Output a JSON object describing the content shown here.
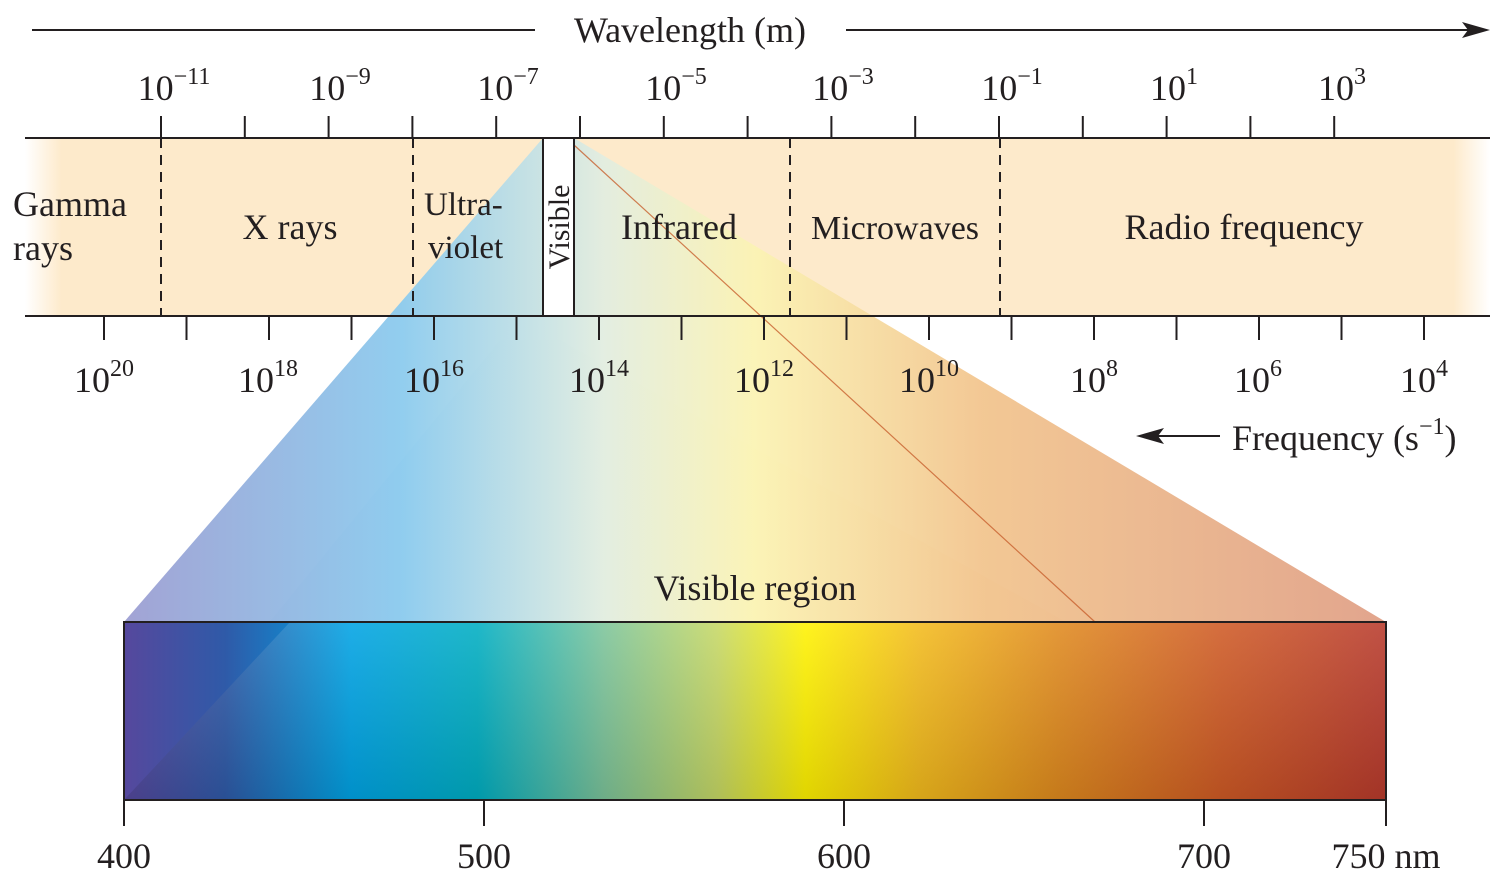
{
  "wavelength_axis": {
    "title": "Wavelength (m)",
    "ticks": [
      {
        "base": "10",
        "exp": "−11"
      },
      {
        "base": "10",
        "exp": "−9"
      },
      {
        "base": "10",
        "exp": "−7"
      },
      {
        "base": "10",
        "exp": "−5"
      },
      {
        "base": "10",
        "exp": "−3"
      },
      {
        "base": "10",
        "exp": "−1"
      },
      {
        "base": "10",
        "exp": "1"
      },
      {
        "base": "10",
        "exp": "3"
      }
    ]
  },
  "frequency_axis": {
    "title_base": "Frequency (s",
    "title_exp": "−1",
    "title_close": ")",
    "ticks": [
      {
        "base": "10",
        "exp": "20"
      },
      {
        "base": "10",
        "exp": "18"
      },
      {
        "base": "10",
        "exp": "16"
      },
      {
        "base": "10",
        "exp": "14"
      },
      {
        "base": "10",
        "exp": "12"
      },
      {
        "base": "10",
        "exp": "10"
      },
      {
        "base": "10",
        "exp": "8"
      },
      {
        "base": "10",
        "exp": "6"
      },
      {
        "base": "10",
        "exp": "4"
      }
    ]
  },
  "regions": {
    "gamma_line1": "Gamma",
    "gamma_line2": "rays",
    "xrays": "X rays",
    "uv_line1": "Ultra-",
    "uv_line2": "violet",
    "visible": "Visible",
    "infrared": "Infrared",
    "microwaves": "Microwaves",
    "radio": "Radio frequency"
  },
  "visible_region": {
    "title": "Visible region",
    "ticks": [
      "400",
      "500",
      "600",
      "700",
      "750 nm"
    ]
  },
  "colors": {
    "band": "#fdeacb",
    "violet": "#5a4a9c",
    "blue": "#00a3e4",
    "green": "#7cc49a",
    "yellow": "#fff200",
    "orange": "#e08a1e",
    "red": "#b83a2c"
  }
}
